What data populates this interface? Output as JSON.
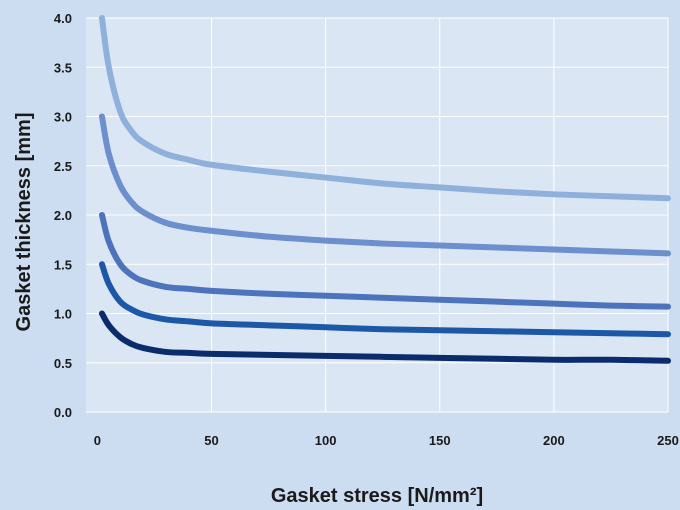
{
  "chart_data": {
    "type": "line",
    "title": "",
    "xlabel": "Gasket stress [N/mm²]",
    "ylabel": "Gasket thickness [mm]",
    "xlim": [
      -5,
      250
    ],
    "ylim": [
      0,
      4
    ],
    "xticks": [
      "0",
      "50",
      "100",
      "150",
      "200",
      "250"
    ],
    "yticks": [
      "0.0",
      "0.5",
      "1.0",
      "1.5",
      "2.0",
      "2.5",
      "3.0",
      "3.5",
      "4.0"
    ],
    "grid": true,
    "legend": "none",
    "series": [
      {
        "color": "#90b0dc",
        "x": [
          2,
          5,
          10,
          15,
          20,
          30,
          40,
          50,
          75,
          100,
          125,
          150,
          175,
          200,
          225,
          250
        ],
        "y": [
          4.0,
          3.5,
          3.05,
          2.85,
          2.74,
          2.62,
          2.56,
          2.51,
          2.44,
          2.38,
          2.32,
          2.28,
          2.24,
          2.21,
          2.19,
          2.17
        ]
      },
      {
        "color": "#6d8fcd",
        "x": [
          2,
          5,
          10,
          15,
          20,
          30,
          40,
          50,
          75,
          100,
          125,
          150,
          175,
          200,
          225,
          250
        ],
        "y": [
          3.0,
          2.62,
          2.3,
          2.13,
          2.03,
          1.92,
          1.87,
          1.84,
          1.78,
          1.74,
          1.71,
          1.69,
          1.67,
          1.65,
          1.63,
          1.61
        ]
      },
      {
        "color": "#4d73bc",
        "x": [
          2,
          5,
          10,
          15,
          20,
          30,
          40,
          50,
          75,
          100,
          125,
          150,
          175,
          200,
          225,
          250
        ],
        "y": [
          2.0,
          1.73,
          1.5,
          1.39,
          1.33,
          1.27,
          1.25,
          1.23,
          1.2,
          1.18,
          1.16,
          1.14,
          1.12,
          1.1,
          1.08,
          1.07
        ]
      },
      {
        "color": "#1d57a8",
        "x": [
          2,
          5,
          10,
          15,
          20,
          30,
          40,
          50,
          75,
          100,
          125,
          150,
          175,
          200,
          225,
          250
        ],
        "y": [
          1.5,
          1.3,
          1.12,
          1.04,
          0.99,
          0.94,
          0.92,
          0.9,
          0.88,
          0.86,
          0.84,
          0.83,
          0.82,
          0.81,
          0.8,
          0.79
        ]
      },
      {
        "color": "#0a2c6c",
        "x": [
          2,
          5,
          10,
          15,
          20,
          30,
          40,
          50,
          75,
          100,
          125,
          150,
          175,
          200,
          225,
          250
        ],
        "y": [
          1.0,
          0.88,
          0.76,
          0.69,
          0.65,
          0.61,
          0.6,
          0.59,
          0.58,
          0.57,
          0.56,
          0.55,
          0.54,
          0.53,
          0.53,
          0.52
        ]
      }
    ]
  }
}
